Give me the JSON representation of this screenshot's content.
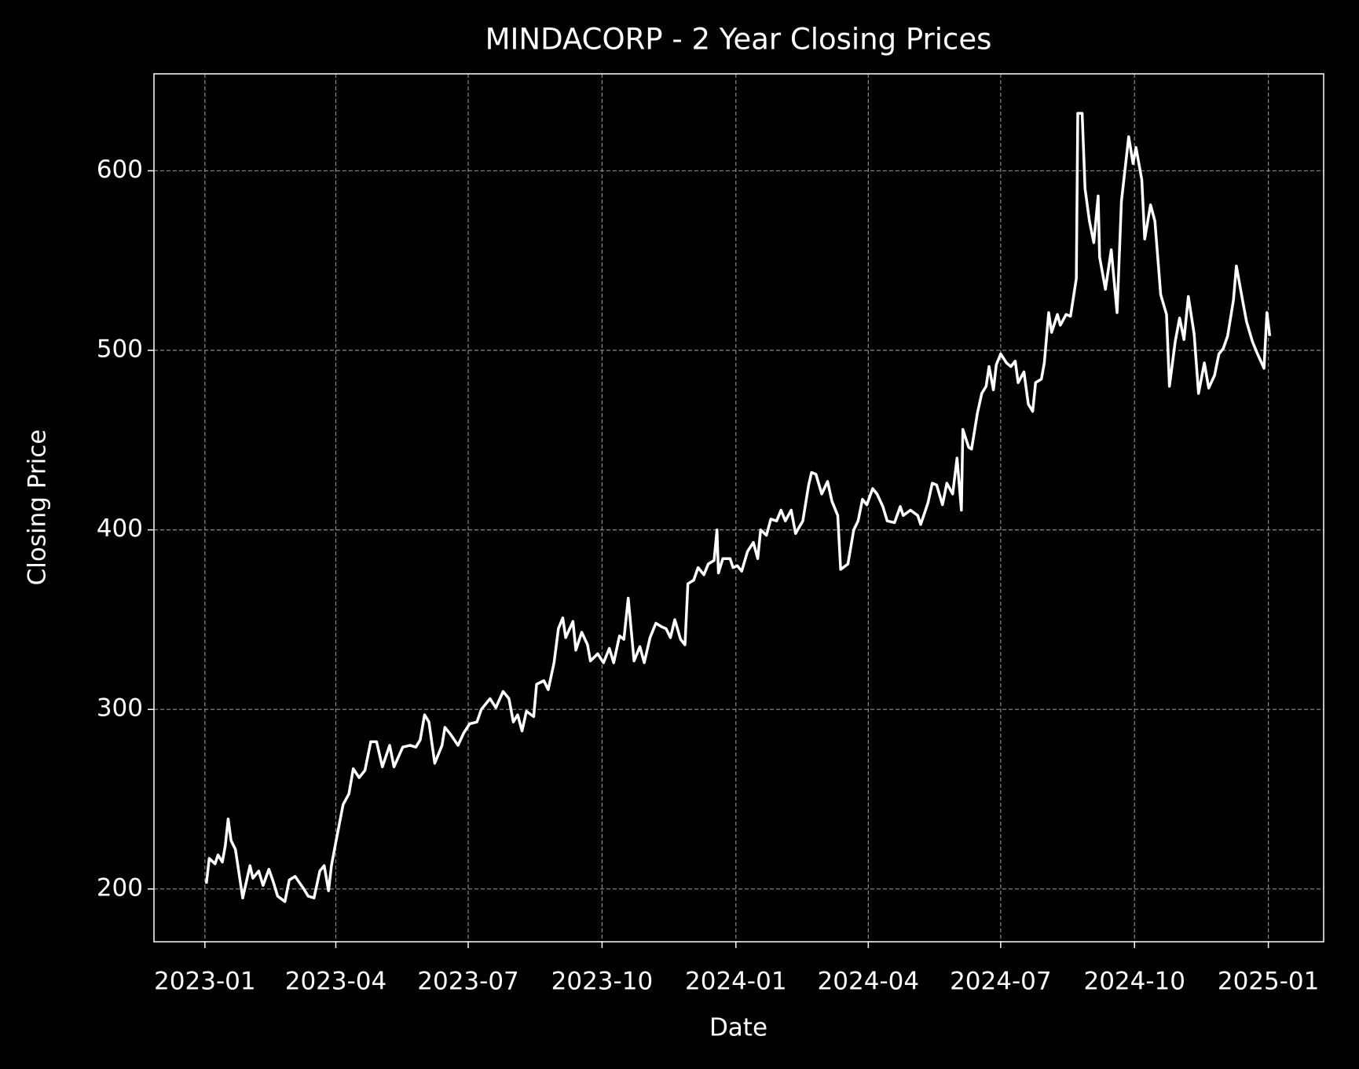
{
  "chart_data": {
    "type": "line",
    "title": "MINDACORP - 2 Year Closing Prices",
    "x_label": "Date",
    "y_label": "Closing Price",
    "color": "#ffffff",
    "grid": true,
    "x": [
      "2023-01-02",
      "2023-01-04",
      "2023-01-08",
      "2023-01-10",
      "2023-01-13",
      "2023-01-15",
      "2023-01-17",
      "2023-01-19",
      "2023-01-22",
      "2023-01-27",
      "2023-02-01",
      "2023-02-03",
      "2023-02-07",
      "2023-02-10",
      "2023-02-14",
      "2023-02-17",
      "2023-02-20",
      "2023-02-25",
      "2023-02-28",
      "2023-03-04",
      "2023-03-10",
      "2023-03-13",
      "2023-03-17",
      "2023-03-21",
      "2023-03-24",
      "2023-03-27",
      "2023-03-29",
      "2023-04-01",
      "2023-04-06",
      "2023-04-10",
      "2023-04-13",
      "2023-04-17",
      "2023-04-21",
      "2023-04-25",
      "2023-04-29",
      "2023-05-03",
      "2023-05-08",
      "2023-05-11",
      "2023-05-17",
      "2023-05-22",
      "2023-05-26",
      "2023-05-29",
      "2023-06-01",
      "2023-06-04",
      "2023-06-08",
      "2023-06-13",
      "2023-06-15",
      "2023-06-19",
      "2023-06-24",
      "2023-06-28",
      "2023-07-02",
      "2023-07-07",
      "2023-07-10",
      "2023-07-16",
      "2023-07-20",
      "2023-07-25",
      "2023-07-29",
      "2023-08-01",
      "2023-08-04",
      "2023-08-07",
      "2023-08-10",
      "2023-08-15",
      "2023-08-17",
      "2023-08-22",
      "2023-08-25",
      "2023-08-29",
      "2023-09-01",
      "2023-09-04",
      "2023-09-06",
      "2023-09-11",
      "2023-09-13",
      "2023-09-17",
      "2023-09-21",
      "2023-09-23",
      "2023-09-28",
      "2023-10-02",
      "2023-10-06",
      "2023-10-09",
      "2023-10-13",
      "2023-10-16",
      "2023-10-19",
      "2023-10-23",
      "2023-10-27",
      "2023-10-30",
      "2023-11-03",
      "2023-11-07",
      "2023-11-11",
      "2023-11-14",
      "2023-11-17",
      "2023-11-20",
      "2023-11-24",
      "2023-11-27",
      "2023-11-29",
      "2023-12-03",
      "2023-12-06",
      "2023-12-10",
      "2023-12-13",
      "2023-12-17",
      "2023-12-19",
      "2023-12-20",
      "2023-12-23",
      "2023-12-28",
      "2023-12-30",
      "2024-01-02",
      "2024-01-05",
      "2024-01-09",
      "2024-01-13",
      "2024-01-16",
      "2024-01-18",
      "2024-01-22",
      "2024-01-25",
      "2024-01-29",
      "2024-02-01",
      "2024-02-04",
      "2024-02-08",
      "2024-02-11",
      "2024-02-16",
      "2024-02-20",
      "2024-02-22",
      "2024-02-25",
      "2024-02-29",
      "2024-03-04",
      "2024-03-07",
      "2024-03-11",
      "2024-03-13",
      "2024-03-18",
      "2024-03-22",
      "2024-03-25",
      "2024-03-28",
      "2024-03-31",
      "2024-04-04",
      "2024-04-07",
      "2024-04-11",
      "2024-04-14",
      "2024-04-19",
      "2024-04-23",
      "2024-04-25",
      "2024-04-30",
      "2024-05-05",
      "2024-05-07",
      "2024-05-12",
      "2024-05-15",
      "2024-05-18",
      "2024-05-22",
      "2024-05-25",
      "2024-05-29",
      "2024-06-01",
      "2024-06-04",
      "2024-06-05",
      "2024-06-09",
      "2024-06-11",
      "2024-06-15",
      "2024-06-18",
      "2024-06-21",
      "2024-06-23",
      "2024-06-26",
      "2024-06-28",
      "2024-07-01",
      "2024-07-05",
      "2024-07-08",
      "2024-07-11",
      "2024-07-13",
      "2024-07-17",
      "2024-07-20",
      "2024-07-23",
      "2024-07-25",
      "2024-07-29",
      "2024-07-31",
      "2024-08-03",
      "2024-08-05",
      "2024-08-09",
      "2024-08-11",
      "2024-08-15",
      "2024-08-18",
      "2024-08-22",
      "2024-08-23",
      "2024-08-26",
      "2024-08-28",
      "2024-08-31",
      "2024-09-03",
      "2024-09-06",
      "2024-09-07",
      "2024-09-11",
      "2024-09-15",
      "2024-09-19",
      "2024-09-22",
      "2024-09-27",
      "2024-09-30",
      "2024-10-02",
      "2024-10-06",
      "2024-10-08",
      "2024-10-12",
      "2024-10-15",
      "2024-10-19",
      "2024-10-23",
      "2024-10-25",
      "2024-10-29",
      "2024-11-01",
      "2024-11-04",
      "2024-11-07",
      "2024-11-11",
      "2024-11-14",
      "2024-11-18",
      "2024-11-21",
      "2024-11-25",
      "2024-11-28",
      "2024-12-01",
      "2024-12-04",
      "2024-12-08",
      "2024-12-10",
      "2024-12-14",
      "2024-12-17",
      "2024-12-21",
      "2024-12-24",
      "2024-12-29",
      "2024-12-31",
      "2025-01-02"
    ],
    "values": [
      203,
      217,
      214,
      219,
      215,
      224,
      239,
      227,
      222,
      195,
      213,
      206,
      210,
      202,
      211,
      204,
      196,
      193,
      205,
      207,
      200,
      196,
      195,
      210,
      213,
      199,
      213,
      226,
      247,
      253,
      267,
      262,
      266,
      282,
      282,
      268,
      280,
      268,
      279,
      280,
      279,
      283,
      297,
      293,
      270,
      280,
      290,
      286,
      280,
      287,
      292,
      293,
      300,
      306,
      301,
      310,
      306,
      293,
      297,
      288,
      299,
      296,
      314,
      316,
      311,
      326,
      345,
      351,
      340,
      349,
      333,
      343,
      336,
      327,
      331,
      326,
      334,
      326,
      341,
      339,
      362,
      327,
      335,
      326,
      340,
      348,
      346,
      345,
      340,
      350,
      339,
      336,
      370,
      372,
      379,
      375,
      381,
      383,
      400,
      376,
      384,
      384,
      379,
      380,
      377,
      388,
      393,
      384,
      400,
      397,
      406,
      405,
      411,
      405,
      411,
      398,
      405,
      425,
      432,
      431,
      420,
      427,
      416,
      408,
      378,
      381,
      400,
      405,
      417,
      414,
      423,
      420,
      413,
      405,
      404,
      413,
      408,
      411,
      408,
      403,
      415,
      426,
      425,
      414,
      426,
      420,
      440,
      411,
      456,
      446,
      445,
      465,
      476,
      480,
      491,
      478,
      492,
      498,
      493,
      491,
      494,
      482,
      488,
      470,
      466,
      482,
      484,
      493,
      521,
      510,
      520,
      514,
      520,
      519,
      540,
      632,
      632,
      590,
      572,
      560,
      586,
      552,
      534,
      556,
      521,
      583,
      619,
      604,
      613,
      595,
      562,
      581,
      572,
      531,
      520,
      480,
      505,
      518,
      506,
      530,
      509,
      476,
      493,
      479,
      486,
      498,
      501,
      508,
      528,
      547,
      529,
      516,
      505,
      499,
      490,
      521,
      508
    ],
    "xlim": [
      "2022-11-27",
      "2025-02-08"
    ],
    "xticks": [
      "2023-01",
      "2023-04",
      "2023-07",
      "2023-10",
      "2024-01",
      "2024-04",
      "2024-07",
      "2024-10",
      "2025-01"
    ],
    "ylim": [
      170.6,
      654
    ],
    "yticks": [
      200,
      300,
      400,
      500,
      600
    ]
  }
}
